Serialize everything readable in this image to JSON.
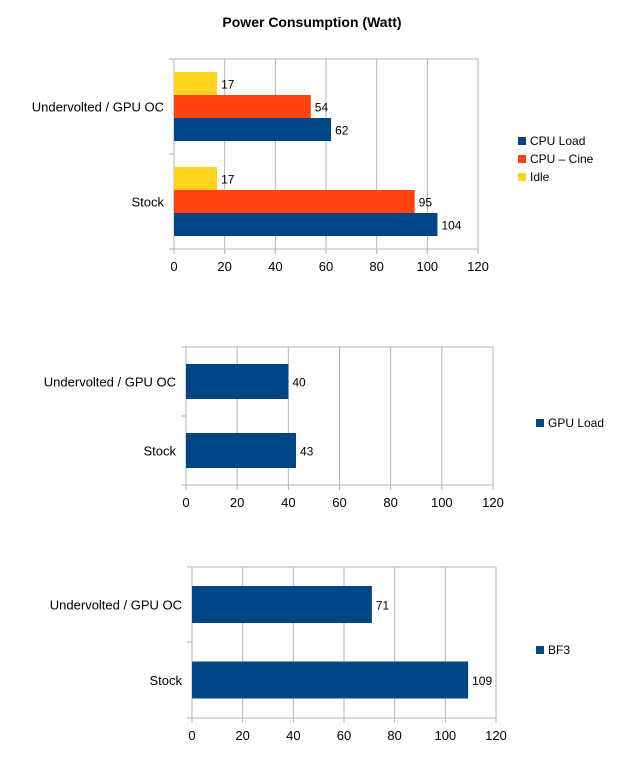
{
  "title": "Power Consumption (Watt)",
  "colors": {
    "cpu_load": "#004586",
    "cpu_cine": "#FF420E",
    "idle": "#FFD320",
    "grid": "#b3b3b3",
    "axis": "#b3b3b3"
  },
  "chart_data": [
    {
      "type": "bar",
      "orientation": "horizontal",
      "title": "Power Consumption (Watt)",
      "categories": [
        "Undervolted / GPU OC",
        "Stock"
      ],
      "series": [
        {
          "name": "CPU Load",
          "values": [
            62,
            104
          ],
          "color": "#004586"
        },
        {
          "name": "CPU – Cine",
          "values": [
            54,
            95
          ],
          "color": "#FF420E"
        },
        {
          "name": "Idle",
          "values": [
            17,
            17
          ],
          "color": "#FFD320"
        }
      ],
      "xlim": [
        0,
        120
      ],
      "ticks": [
        0,
        20,
        40,
        60,
        80,
        100,
        120
      ],
      "grid": true,
      "legend": "right"
    },
    {
      "type": "bar",
      "orientation": "horizontal",
      "categories": [
        "Undervolted / GPU OC",
        "Stock"
      ],
      "series": [
        {
          "name": "GPU Load",
          "values": [
            40,
            43
          ],
          "color": "#004586"
        }
      ],
      "xlim": [
        0,
        120
      ],
      "ticks": [
        0,
        20,
        40,
        60,
        80,
        100,
        120
      ],
      "grid": true,
      "legend": "right"
    },
    {
      "type": "bar",
      "orientation": "horizontal",
      "categories": [
        "Undervolted / GPU OC",
        "Stock"
      ],
      "series": [
        {
          "name": "BF3",
          "values": [
            71,
            109
          ],
          "color": "#004586"
        }
      ],
      "xlim": [
        0,
        120
      ],
      "ticks": [
        0,
        20,
        40,
        60,
        80,
        100,
        120
      ],
      "grid": true,
      "legend": "right"
    }
  ]
}
